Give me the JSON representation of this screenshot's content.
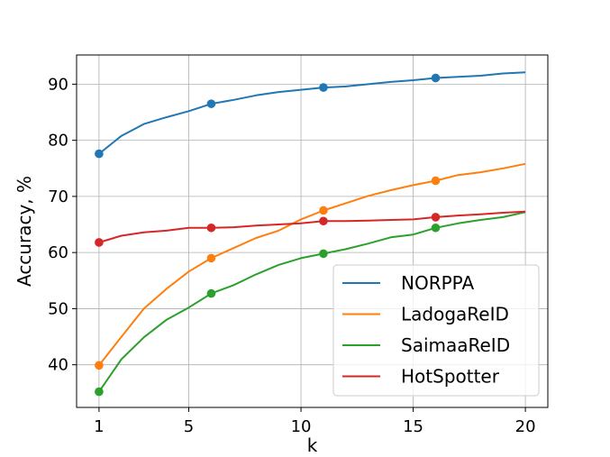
{
  "chart_data": {
    "type": "line",
    "xlabel": "k",
    "ylabel": "Accuracy, %",
    "xlim": [
      0,
      21
    ],
    "ylim": [
      32.4,
      95.2
    ],
    "xticks": [
      1,
      5,
      10,
      15,
      20
    ],
    "yticks": [
      40,
      50,
      60,
      70,
      80,
      90
    ],
    "grid": true,
    "legend_position": "lower-right",
    "x": [
      1,
      2,
      3,
      4,
      5,
      6,
      7,
      8,
      9,
      10,
      11,
      12,
      13,
      14,
      15,
      16,
      17,
      18,
      19,
      20
    ],
    "marker_x": [
      1,
      6,
      11,
      16
    ],
    "series": [
      {
        "name": "NORPPA",
        "color": "#1f77b4",
        "values": [
          77.6,
          80.8,
          82.9,
          84.1,
          85.2,
          86.5,
          87.2,
          88.0,
          88.6,
          89.0,
          89.4,
          89.6,
          90.0,
          90.4,
          90.7,
          91.1,
          91.3,
          91.5,
          91.9,
          92.1
        ]
      },
      {
        "name": "LadogaReID",
        "color": "#ff7f0e",
        "values": [
          39.9,
          45.0,
          50.0,
          53.5,
          56.6,
          59.0,
          60.8,
          62.6,
          63.9,
          65.9,
          67.5,
          68.8,
          70.1,
          71.1,
          72.0,
          72.8,
          73.8,
          74.3,
          75.0,
          75.8
        ]
      },
      {
        "name": "SaimaaReID",
        "color": "#2ca02c",
        "values": [
          35.2,
          41.0,
          44.9,
          48.0,
          50.2,
          52.7,
          54.2,
          56.1,
          57.8,
          59.0,
          59.8,
          60.6,
          61.6,
          62.7,
          63.2,
          64.4,
          65.2,
          65.8,
          66.3,
          67.2
        ]
      },
      {
        "name": "HotSpotter",
        "color": "#d62728",
        "values": [
          61.8,
          63.0,
          63.6,
          63.9,
          64.4,
          64.4,
          64.5,
          64.8,
          65.0,
          65.2,
          65.6,
          65.6,
          65.7,
          65.8,
          65.9,
          66.3,
          66.6,
          66.8,
          67.1,
          67.3
        ]
      }
    ]
  }
}
